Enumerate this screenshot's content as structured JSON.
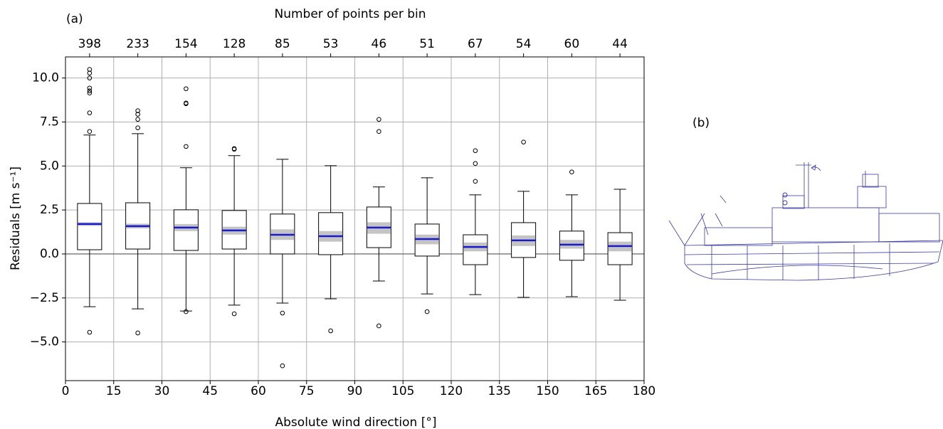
{
  "chart_data": {
    "type": "box",
    "panel_label": "(a)",
    "top_xlabel": "Number of points per bin",
    "xlabel": "Absolute wind direction [°]",
    "ylabel": "Residuals [m s⁻¹]",
    "x": [
      7.5,
      22.5,
      37.5,
      52.5,
      67.5,
      82.5,
      97.5,
      112.5,
      127.5,
      142.5,
      157.5,
      172.5
    ],
    "counts": [
      398,
      233,
      154,
      128,
      85,
      53,
      46,
      51,
      67,
      54,
      60,
      44
    ],
    "boxes": [
      {
        "whisker_low": -3.0,
        "q1": 0.24,
        "median": 1.7,
        "q3": 2.87,
        "whisker_high": 6.76,
        "ci": [
          1.6,
          1.8
        ],
        "outliers": [
          10.49,
          10.28,
          10.0,
          9.43,
          9.27,
          9.15,
          8.02,
          6.96,
          -4.45
        ]
      },
      {
        "whisker_low": -3.12,
        "q1": 0.28,
        "median": 1.58,
        "q3": 2.91,
        "whisker_high": 6.84,
        "ci": [
          1.45,
          1.72
        ],
        "outliers": [
          8.14,
          7.94,
          7.65,
          7.17,
          -4.49
        ]
      },
      {
        "whisker_low": -3.24,
        "q1": 0.2,
        "median": 1.5,
        "q3": 2.51,
        "whisker_high": 4.9,
        "ci": [
          1.3,
          1.7
        ],
        "outliers": [
          9.39,
          8.58,
          8.54,
          6.11,
          -3.28
        ]
      },
      {
        "whisker_low": -2.91,
        "q1": 0.28,
        "median": 1.34,
        "q3": 2.47,
        "whisker_high": 5.59,
        "ci": [
          1.1,
          1.55
        ],
        "outliers": [
          5.99,
          5.95,
          -3.4
        ]
      },
      {
        "whisker_low": -2.79,
        "q1": 0.0,
        "median": 1.09,
        "q3": 2.27,
        "whisker_high": 5.38,
        "ci": [
          0.8,
          1.4
        ],
        "outliers": [
          -3.36,
          -6.36
        ]
      },
      {
        "whisker_low": -2.55,
        "q1": -0.04,
        "median": 1.01,
        "q3": 2.35,
        "whisker_high": 5.02,
        "ci": [
          0.7,
          1.3
        ],
        "outliers": [
          -4.37
        ]
      },
      {
        "whisker_low": -1.54,
        "q1": 0.36,
        "median": 1.5,
        "q3": 2.67,
        "whisker_high": 3.81,
        "ci": [
          1.15,
          1.8
        ],
        "outliers": [
          7.65,
          6.96,
          -4.09
        ]
      },
      {
        "whisker_low": -2.27,
        "q1": -0.12,
        "median": 0.85,
        "q3": 1.7,
        "whisker_high": 4.33,
        "ci": [
          0.55,
          1.1
        ],
        "outliers": [
          -3.28
        ]
      },
      {
        "whisker_low": -2.31,
        "q1": -0.61,
        "median": 0.4,
        "q3": 1.09,
        "whisker_high": 3.36,
        "ci": [
          0.15,
          0.65
        ],
        "outliers": [
          5.87,
          5.14,
          4.13
        ]
      },
      {
        "whisker_low": -2.47,
        "q1": -0.2,
        "median": 0.77,
        "q3": 1.78,
        "whisker_high": 3.56,
        "ci": [
          0.45,
          1.05
        ],
        "outliers": [
          6.36
        ]
      },
      {
        "whisker_low": -2.43,
        "q1": -0.36,
        "median": 0.53,
        "q3": 1.3,
        "whisker_high": 3.36,
        "ci": [
          0.3,
          0.8
        ],
        "outliers": [
          4.66
        ]
      },
      {
        "whisker_low": -2.63,
        "q1": -0.61,
        "median": 0.45,
        "q3": 1.21,
        "whisker_high": 3.68,
        "ci": [
          0.15,
          0.7
        ],
        "outliers": []
      }
    ],
    "median_color": "#1a1acc",
    "ci_color": "#c4c4c4",
    "hline": 0,
    "xlim": [
      0,
      180
    ],
    "xticks": [
      0,
      15,
      30,
      45,
      60,
      75,
      90,
      105,
      120,
      135,
      150,
      165,
      180
    ],
    "ylim": [
      -7.2,
      11.2
    ],
    "yticks": [
      {
        "value": -5,
        "label": "−5.0"
      },
      {
        "value": -2.5,
        "label": "−2.5"
      },
      {
        "value": 0,
        "label": "0.0"
      },
      {
        "value": 2.5,
        "label": "2.5"
      },
      {
        "value": 5,
        "label": "5.0"
      },
      {
        "value": 7.5,
        "label": "7.5"
      },
      {
        "value": 10,
        "label": "10.0"
      }
    ],
    "grid": true
  },
  "figure_b": {
    "panel_label": "(b)"
  }
}
